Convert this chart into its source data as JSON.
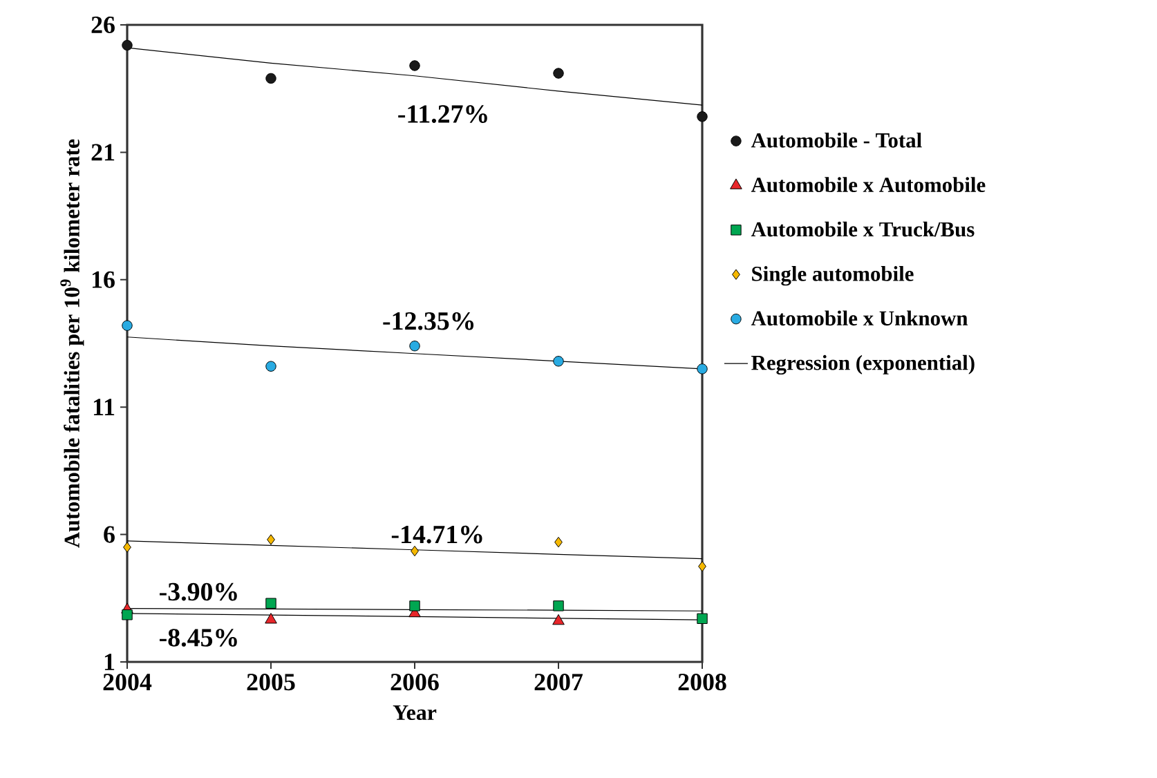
{
  "chart_data": {
    "type": "scatter",
    "xlabel": "Year",
    "ylabel": "Automobile fatalities per 10$^{9}$ kilometer rate",
    "x": [
      2004,
      2005,
      2006,
      2007,
      2008
    ],
    "xlim": [
      2004,
      2008
    ],
    "xticks": [
      2004,
      2005,
      2006,
      2007,
      2008
    ],
    "ylim": [
      1,
      26
    ],
    "yticks": [
      1,
      6,
      11,
      16,
      21,
      26
    ],
    "legend": "right",
    "series": [
      {
        "name": "Automobile - Total",
        "color": "#1a1a1a",
        "marker": "circle",
        "values": [
          25.2,
          23.9,
          24.4,
          24.1,
          22.4
        ]
      },
      {
        "name": "Automobile x Automobile",
        "color": "#e8262a",
        "marker": "triangle",
        "values": [
          3.05,
          2.65,
          2.9,
          2.6,
          null
        ]
      },
      {
        "name": "Automobile x Truck/Bus",
        "color": "#00a651",
        "marker": "square",
        "values": [
          2.85,
          3.3,
          3.2,
          3.2,
          2.7
        ]
      },
      {
        "name": "Single automobile",
        "color": "#f5b800",
        "marker": "diamond",
        "values": [
          5.5,
          5.8,
          5.35,
          5.7,
          4.75
        ]
      },
      {
        "name": "Automobile x Unknown",
        "color": "#29abe2",
        "marker": "circle",
        "values": [
          14.2,
          12.6,
          13.4,
          12.8,
          12.5
        ]
      },
      {
        "name": "Regression (exponential)",
        "type": "line",
        "color": "#000000",
        "marker": "none",
        "values": [
          25.1,
          24.5,
          24.0,
          23.4,
          22.85
        ]
      },
      {
        "type": "line",
        "color": "#000000",
        "marker": "none",
        "values": [
          13.75,
          13.4,
          13.1,
          12.8,
          12.5
        ]
      },
      {
        "type": "line",
        "color": "#000000",
        "marker": "none",
        "values": [
          5.75,
          5.57,
          5.4,
          5.22,
          5.05
        ]
      },
      {
        "type": "line",
        "color": "#000000",
        "marker": "none",
        "values": [
          3.1,
          3.08,
          3.05,
          3.03,
          3.0
        ]
      },
      {
        "type": "line",
        "color": "#000000",
        "marker": "none",
        "values": [
          2.9,
          2.84,
          2.78,
          2.71,
          2.65
        ]
      }
    ],
    "annotations": [
      "-11.27%",
      "-12.35%",
      "-14.71%",
      "-3.90%",
      "-8.45%"
    ]
  }
}
